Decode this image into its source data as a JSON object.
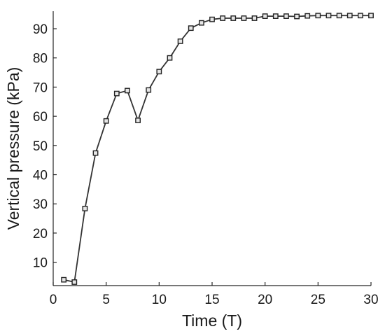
{
  "chart_data": {
    "type": "line",
    "title": "",
    "xlabel": "Time (T)",
    "ylabel": "Vertical pressure (kPa)",
    "xlim": [
      0,
      30
    ],
    "ylim": [
      2,
      96
    ],
    "xticks": [
      0,
      5,
      10,
      15,
      20,
      25,
      30
    ],
    "yticks": [
      10,
      20,
      30,
      40,
      50,
      60,
      70,
      80,
      90
    ],
    "grid": false,
    "legend": "none",
    "marker": "square",
    "colors": {
      "line": "#333333",
      "marker_edge": "#222222",
      "marker_fill": "#e6e6e6",
      "axis": "#262626",
      "text": "#1a1a1a"
    },
    "series": [
      {
        "x": [
          1,
          2,
          3,
          4,
          5,
          6,
          7,
          8,
          9,
          10,
          11,
          12,
          13,
          14,
          15,
          16,
          17,
          18,
          19,
          20,
          21,
          22,
          23,
          24,
          25,
          26,
          27,
          28,
          29,
          30
        ],
        "values": [
          4.0,
          3.2,
          28.4,
          47.4,
          58.4,
          67.8,
          68.8,
          58.6,
          69.0,
          75.3,
          80.0,
          85.7,
          90.2,
          92.0,
          93.2,
          93.6,
          93.6,
          93.6,
          93.6,
          94.3,
          94.3,
          94.3,
          94.2,
          94.4,
          94.5,
          94.5,
          94.5,
          94.5,
          94.5,
          94.5
        ]
      }
    ]
  }
}
